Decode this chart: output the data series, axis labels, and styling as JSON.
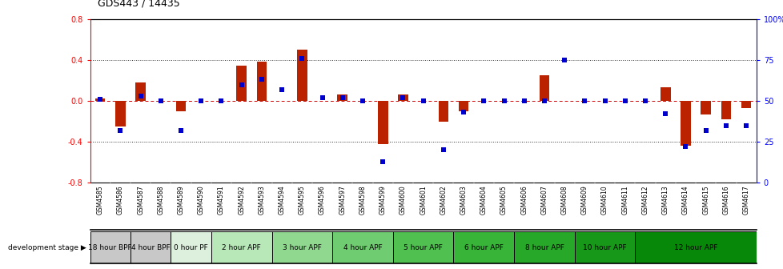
{
  "title": "GDS443 / 14435",
  "samples": [
    "GSM4585",
    "GSM4586",
    "GSM4587",
    "GSM4588",
    "GSM4589",
    "GSM4590",
    "GSM4591",
    "GSM4592",
    "GSM4593",
    "GSM4594",
    "GSM4595",
    "GSM4596",
    "GSM4597",
    "GSM4598",
    "GSM4599",
    "GSM4600",
    "GSM4601",
    "GSM4602",
    "GSM4603",
    "GSM4604",
    "GSM4605",
    "GSM4606",
    "GSM4607",
    "GSM4608",
    "GSM4609",
    "GSM4610",
    "GSM4611",
    "GSM4612",
    "GSM4613",
    "GSM4614",
    "GSM4615",
    "GSM4616",
    "GSM4617"
  ],
  "log_ratio": [
    0.02,
    -0.25,
    0.18,
    0.0,
    -0.1,
    0.0,
    0.0,
    0.34,
    0.38,
    0.0,
    0.5,
    0.0,
    0.06,
    0.0,
    -0.42,
    0.06,
    0.0,
    -0.2,
    -0.1,
    0.0,
    0.0,
    0.0,
    0.25,
    0.0,
    0.0,
    0.0,
    0.0,
    0.0,
    0.13,
    -0.44,
    -0.13,
    -0.18,
    -0.07
  ],
  "percentile": [
    51,
    32,
    53,
    50,
    32,
    50,
    50,
    60,
    63,
    57,
    76,
    52,
    52,
    50,
    13,
    52,
    50,
    20,
    43,
    50,
    50,
    50,
    50,
    75,
    50,
    50,
    50,
    50,
    42,
    22,
    32,
    35,
    35
  ],
  "stages": [
    {
      "label": "18 hour BPF",
      "start": 0,
      "end": 2,
      "color": "#c8c8c8"
    },
    {
      "label": "4 hour BPF",
      "start": 2,
      "end": 4,
      "color": "#c8c8c8"
    },
    {
      "label": "0 hour PF",
      "start": 4,
      "end": 6,
      "color": "#ddf0dd"
    },
    {
      "label": "2 hour APF",
      "start": 6,
      "end": 9,
      "color": "#b8e8b8"
    },
    {
      "label": "3 hour APF",
      "start": 9,
      "end": 12,
      "color": "#90d890"
    },
    {
      "label": "4 hour APF",
      "start": 12,
      "end": 15,
      "color": "#70cc70"
    },
    {
      "label": "5 hour APF",
      "start": 15,
      "end": 18,
      "color": "#50c050"
    },
    {
      "label": "6 hour APF",
      "start": 18,
      "end": 21,
      "color": "#38b438"
    },
    {
      "label": "8 hour APF",
      "start": 21,
      "end": 24,
      "color": "#28a828"
    },
    {
      "label": "10 hour APF",
      "start": 24,
      "end": 27,
      "color": "#189818"
    },
    {
      "label": "12 hour APF",
      "start": 27,
      "end": 33,
      "color": "#088808"
    }
  ],
  "ylim": [
    -0.8,
    0.8
  ],
  "yticks_left": [
    -0.8,
    -0.4,
    0.0,
    0.4,
    0.8
  ],
  "yticks_right_vals": [
    -0.8,
    -0.4,
    0.0,
    0.4,
    0.8
  ],
  "yticks_right_labels": [
    "0",
    "25",
    "50",
    "75",
    "100%"
  ],
  "bar_color": "#bb2200",
  "dot_color": "#0000cc",
  "zero_line_color": "#cc0000",
  "grid_color": "#333333",
  "bg_color": "#ffffff",
  "xticklabel_area_color": "#c8c8c8"
}
